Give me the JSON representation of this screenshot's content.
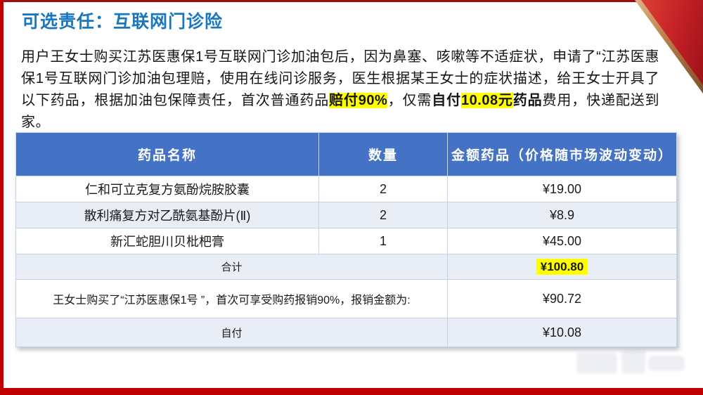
{
  "slide_title": "可选责任：互联网门诊险",
  "paragraph": {
    "segments": [
      {
        "t": "用户王女士购买江苏医惠保1号互联网门诊加油包后，因为鼻塞、咳嗽等不适症状，申请了“江苏医惠保1号互联网门诊加油包理赔，使用在线问诊服务，医生根据某王女士的症状描述，给王女士开具了以下药品，根据加油包保障责任，首次普通药品",
        "style": "normal"
      },
      {
        "t": "赔付90%",
        "style": "bold-highlight"
      },
      {
        "t": "，仅需",
        "style": "normal"
      },
      {
        "t": "自付",
        "style": "bold"
      },
      {
        "t": "10.08元",
        "style": "bold-highlight"
      },
      {
        "t": "药品",
        "style": "bold"
      },
      {
        "t": "费用，快递配送到家。",
        "style": "normal"
      }
    ]
  },
  "table": {
    "headers": [
      "药品名称",
      "数量",
      "金额药品（价格随市场波动变动）"
    ],
    "rows": [
      {
        "kind": "drug",
        "name": "仁和可立克复方氨酚烷胺胶囊",
        "qty": "2",
        "amount": "¥19.00"
      },
      {
        "kind": "drug",
        "name": "散利痛复方对乙酰氨基酚片(Ⅱ)",
        "qty": "2",
        "amount": "¥8.9"
      },
      {
        "kind": "drug",
        "name": "新汇蛇胆川贝枇杷膏",
        "qty": "1",
        "amount": "¥45.00"
      },
      {
        "kind": "total",
        "label": "合计",
        "amount": "¥100.80",
        "highlight": true
      },
      {
        "kind": "note",
        "label": "王女士购买了“江苏医惠保1号 ”，首次可享受购药报销90%，报销金额为:",
        "amount": "¥90.72"
      },
      {
        "kind": "selfpay",
        "label": "自付",
        "amount": "¥10.08"
      }
    ]
  },
  "colors": {
    "accent_red": "#c00000",
    "accent_dark_red": "#9e0f14",
    "title_blue": "#1877be",
    "header_bg": "#4472c4",
    "band_bg": "#e9edf6",
    "highlight_yellow": "#ffff00",
    "note_red": "#c0342f"
  }
}
